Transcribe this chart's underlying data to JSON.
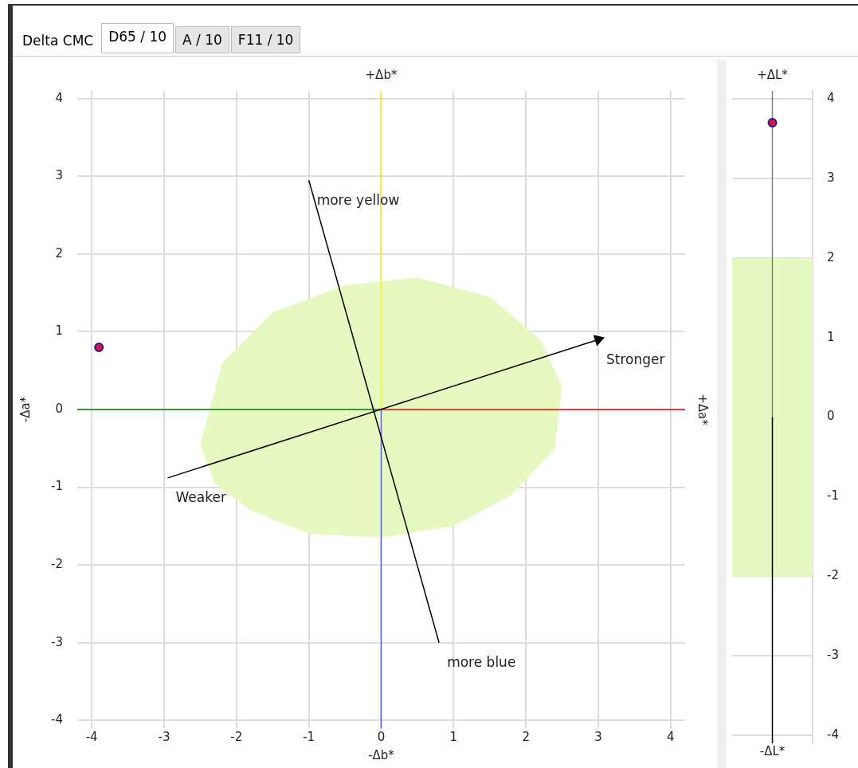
{
  "chart_data": [
    {
      "type": "other",
      "annotations": [
        "Delta CMC",
        "D65 / 10",
        "A / 10",
        "F11 / 10"
      ]
    },
    {
      "type": "scatter",
      "xlabel": "-Δb*",
      "x2label": "+Δb*",
      "ylabel": "-Δa*",
      "y2label": "+Δa*",
      "xlim": [
        -4.2,
        4.2
      ],
      "ylim": [
        -4.1,
        4.1
      ],
      "xticks": [
        -4,
        -3,
        -2,
        -1,
        0,
        1,
        2,
        3,
        4
      ],
      "yticks": [
        -4,
        -3,
        -2,
        -1,
        0,
        1,
        2,
        3,
        4
      ],
      "grid": true,
      "series": [
        {
          "type": "area",
          "color": "#e6f9c0",
          "x": [
            -2.5,
            -2.2,
            -1.5,
            -0.5,
            0.5,
            1.5,
            2.2,
            2.5,
            2.4,
            1.8,
            1.0,
            0.0,
            -1.0,
            -1.8,
            -2.3,
            -2.5
          ],
          "values": [
            -0.45,
            0.6,
            1.25,
            1.6,
            1.7,
            1.45,
            0.9,
            0.3,
            -0.5,
            -1.1,
            -1.5,
            -1.65,
            -1.6,
            -1.3,
            -0.95,
            -0.45
          ]
        },
        {
          "type": "line",
          "color": "#008000",
          "x": [
            -4.2,
            0
          ],
          "values": [
            0,
            0
          ]
        },
        {
          "type": "line",
          "color": "#ff0000",
          "x": [
            0,
            4.2
          ],
          "values": [
            0,
            0
          ]
        },
        {
          "type": "line",
          "color": "#f0f040",
          "x": [
            0,
            0
          ],
          "values": [
            0,
            4.1
          ]
        },
        {
          "type": "line",
          "color": "#6060f0",
          "x": [
            0,
            0
          ],
          "values": [
            0,
            -4.1
          ]
        },
        {
          "type": "line",
          "color": "#000000",
          "x": [
            0.8,
            -1
          ],
          "values": [
            -3,
            2.95
          ]
        },
        {
          "type": "line",
          "color": "#000000",
          "marker": "triangle",
          "x": [
            -2.95,
            3
          ],
          "values": [
            -0.88,
            0.9
          ]
        },
        {
          "type": "scatter",
          "color": "#e0104a",
          "marker": "circle",
          "x": [
            -3.9
          ],
          "values": [
            0.8
          ]
        }
      ],
      "annotations": [
        {
          "text": "more yellow",
          "x": -1,
          "y": 2.95
        },
        {
          "text": "Stronger",
          "x": 3,
          "y": 0.9
        },
        {
          "text": "Weaker",
          "x": -2.95,
          "y": -0.88
        },
        {
          "text": "more blue",
          "x": 0.8,
          "y": -3
        }
      ]
    },
    {
      "type": "scatter",
      "xlabel": "-ΔL*",
      "x2label": "+ΔL*",
      "categories": [
        null
      ],
      "ylim": [
        -4.1,
        4.1
      ],
      "yticks": [
        -4,
        -3,
        -2,
        -1,
        0,
        1,
        2,
        3,
        4
      ],
      "grid": "y",
      "tick_labels": "y",
      "bands": [
        {
          "axis": "y",
          "from": -2,
          "to": 2,
          "color": "#e6f9c0"
        }
      ],
      "series": [
        {
          "type": "scatter",
          "color": "#e0104a",
          "marker": "circle",
          "values": [
            3.7
          ]
        }
      ]
    }
  ]
}
